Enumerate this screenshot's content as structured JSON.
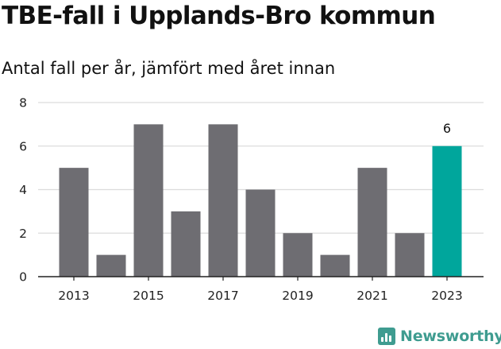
{
  "title": "TBE-fall i Upplands-Bro kommun",
  "subtitle": "Antal fall per år, jämfört med året innan",
  "brand": {
    "name": "Newsworthy",
    "icon": "newsworthy-chart-icon",
    "color": "#3f9c90"
  },
  "chart_data": {
    "type": "bar",
    "categories": [
      "2013",
      "2014",
      "2015",
      "2016",
      "2017",
      "2018",
      "2019",
      "2020",
      "2021",
      "2022",
      "2023"
    ],
    "values": [
      5,
      1,
      7,
      3,
      7,
      4,
      2,
      1,
      5,
      2,
      6
    ],
    "x_tick_labels": [
      "2013",
      "2015",
      "2017",
      "2019",
      "2021",
      "2023"
    ],
    "ylim": [
      0,
      8
    ],
    "y_ticks": [
      0,
      2,
      4,
      6,
      8
    ],
    "grid": true,
    "bar_color": "#6e6d72",
    "highlight_color": "#00a69c",
    "highlight_category": "2023",
    "annotation": {
      "category": "2023",
      "text": "6"
    }
  }
}
